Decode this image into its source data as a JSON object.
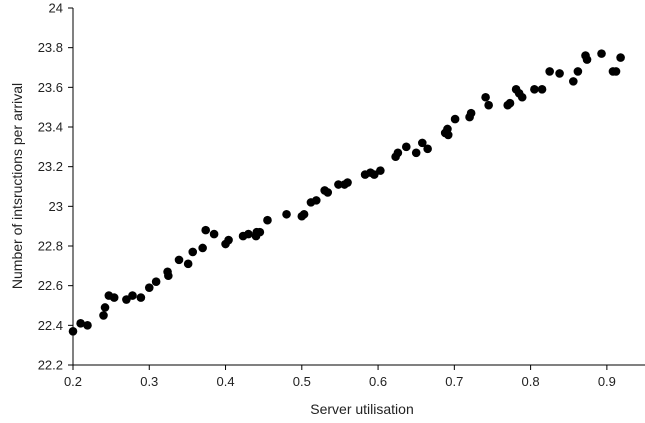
{
  "chart_data": {
    "type": "scatter",
    "title": "",
    "xlabel": "Server utilisation",
    "ylabel": "Number of intsructions per arrival",
    "xlim": [
      0.2,
      0.95
    ],
    "ylim": [
      22.2,
      24
    ],
    "xticks": [
      0.2,
      0.3,
      0.4,
      0.5,
      0.6,
      0.7,
      0.8,
      0.9
    ],
    "xtick_labels": [
      "0.2",
      "0.3",
      "0.4",
      "0.5",
      "0.6",
      "0.7",
      "0.8",
      "0.9"
    ],
    "yticks": [
      22.2,
      22.4,
      22.6,
      22.8,
      23,
      23.2,
      23.4,
      23.6,
      23.8,
      24
    ],
    "ytick_labels": [
      "22.2",
      "22.4",
      "22.6",
      "22.8",
      "23",
      "23.2",
      "23.4",
      "23.6",
      "23.8",
      "24"
    ],
    "grid": false,
    "legend": "none",
    "marker_color": "#000000",
    "series": [
      {
        "x": [
          0.2,
          0.21,
          0.219,
          0.24,
          0.242,
          0.247,
          0.254,
          0.27,
          0.278,
          0.289,
          0.3,
          0.309,
          0.324,
          0.325,
          0.339,
          0.351,
          0.357,
          0.37,
          0.374,
          0.385,
          0.4,
          0.404,
          0.423,
          0.43,
          0.44,
          0.441,
          0.445,
          0.455,
          0.48,
          0.5,
          0.503,
          0.512,
          0.519,
          0.53,
          0.534,
          0.548,
          0.556,
          0.56,
          0.583,
          0.59,
          0.595,
          0.603,
          0.623,
          0.626,
          0.637,
          0.65,
          0.658,
          0.665,
          0.688,
          0.691,
          0.692,
          0.701,
          0.72,
          0.722,
          0.741,
          0.745,
          0.77,
          0.773,
          0.781,
          0.785,
          0.789,
          0.805,
          0.815,
          0.825,
          0.838,
          0.856,
          0.862,
          0.872,
          0.874,
          0.893,
          0.908,
          0.912,
          0.918
        ],
        "y": [
          22.37,
          22.41,
          22.4,
          22.45,
          22.49,
          22.55,
          22.54,
          22.53,
          22.55,
          22.54,
          22.59,
          22.62,
          22.67,
          22.65,
          22.73,
          22.71,
          22.77,
          22.79,
          22.88,
          22.86,
          22.81,
          22.83,
          22.85,
          22.86,
          22.85,
          22.87,
          22.87,
          22.93,
          22.96,
          22.95,
          22.96,
          23.02,
          23.03,
          23.08,
          23.07,
          23.11,
          23.11,
          23.12,
          23.16,
          23.17,
          23.16,
          23.18,
          23.25,
          23.27,
          23.3,
          23.27,
          23.32,
          23.29,
          23.37,
          23.39,
          23.36,
          23.44,
          23.45,
          23.47,
          23.55,
          23.51,
          23.51,
          23.52,
          23.59,
          23.57,
          23.55,
          23.59,
          23.59,
          23.68,
          23.67,
          23.63,
          23.68,
          23.76,
          23.74,
          23.77,
          23.68,
          23.68,
          23.75
        ]
      }
    ]
  }
}
